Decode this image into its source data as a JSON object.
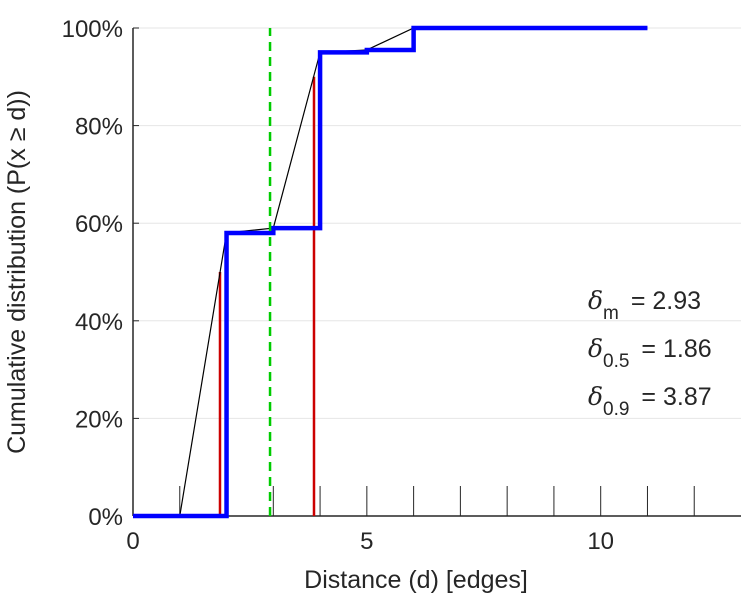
{
  "chart_data": {
    "type": "line",
    "xlabel": "Distance (d) [edges]",
    "ylabel": "Cumulative distribution (P(x ≥ d))",
    "xlim": [
      0,
      13
    ],
    "ylim": [
      0,
      1
    ],
    "x_ticks": [
      0,
      5,
      10
    ],
    "x_tick_labels": [
      "0",
      "5",
      "10"
    ],
    "x_minor_ticks": [
      1,
      2,
      3,
      4,
      6,
      7,
      8,
      9,
      11,
      12
    ],
    "y_ticks": [
      0,
      0.2,
      0.4,
      0.6,
      0.8,
      1.0
    ],
    "y_tick_labels": [
      "0%",
      "20%",
      "40%",
      "60%",
      "80%",
      "100%"
    ],
    "grid": "horizontal",
    "colors": {
      "step": "#0000ff",
      "interpolated": "#000000",
      "mean": "#00cc00",
      "quantile": "#cc0000",
      "grid": "#e6e6e6",
      "axis": "#262626"
    },
    "series": [
      {
        "kind": "step",
        "x": [
          0,
          2,
          2,
          3,
          3,
          4,
          4,
          5,
          5,
          6,
          6,
          11
        ],
        "y": [
          0,
          0,
          0.58,
          0.58,
          0.59,
          0.59,
          0.95,
          0.95,
          0.955,
          0.955,
          1.0,
          1.0
        ]
      },
      {
        "kind": "interpolated",
        "x": [
          1,
          2,
          3,
          4,
          5,
          6,
          11
        ],
        "y": [
          0,
          0.58,
          0.59,
          0.95,
          0.955,
          1.0,
          1.0
        ]
      }
    ],
    "mean_line": {
      "x": 2.93
    },
    "quantile_lines": [
      {
        "x": 1.86,
        "y": 0.5
      },
      {
        "x": 3.87,
        "y": 0.9
      }
    ],
    "annotations": [
      {
        "symbol": "δ",
        "sub": "m",
        "text": "= 2.93"
      },
      {
        "symbol": "δ",
        "sub": "0.5",
        "text": "= 1.86"
      },
      {
        "symbol": "δ",
        "sub": "0.9",
        "text": "= 3.87"
      }
    ]
  }
}
